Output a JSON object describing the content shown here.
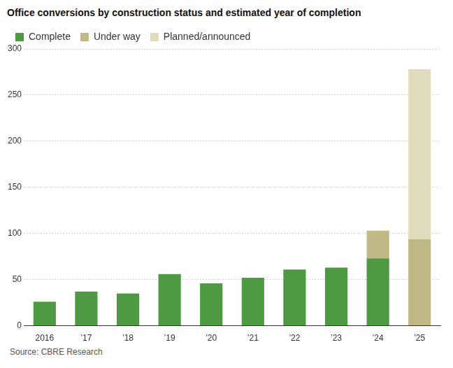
{
  "chart_data": {
    "type": "bar",
    "title": "Office conversions by construction status and estimated year of completion",
    "source": "Source: CBRE Research",
    "categories": [
      "2016",
      "’17",
      "’18",
      "’19",
      "’20",
      "’21",
      "’22",
      "’23",
      "’24",
      "’25"
    ],
    "series": [
      {
        "name": "Complete",
        "color": "#4e9a43",
        "values": [
          26,
          37,
          35,
          56,
          46,
          52,
          61,
          63,
          73,
          null
        ]
      },
      {
        "name": "Under way",
        "color": "#bfb986",
        "values": [
          null,
          null,
          null,
          null,
          null,
          null,
          null,
          null,
          30,
          94
        ]
      },
      {
        "name": "Planned/announced",
        "color": "#e0dbbb",
        "values": [
          null,
          null,
          null,
          null,
          null,
          null,
          null,
          null,
          null,
          184
        ]
      }
    ],
    "stacked": true,
    "ylim": [
      0,
      300
    ],
    "yticks": [
      0,
      50,
      100,
      150,
      200,
      250,
      300
    ],
    "grid": true,
    "legend": "top-left"
  }
}
